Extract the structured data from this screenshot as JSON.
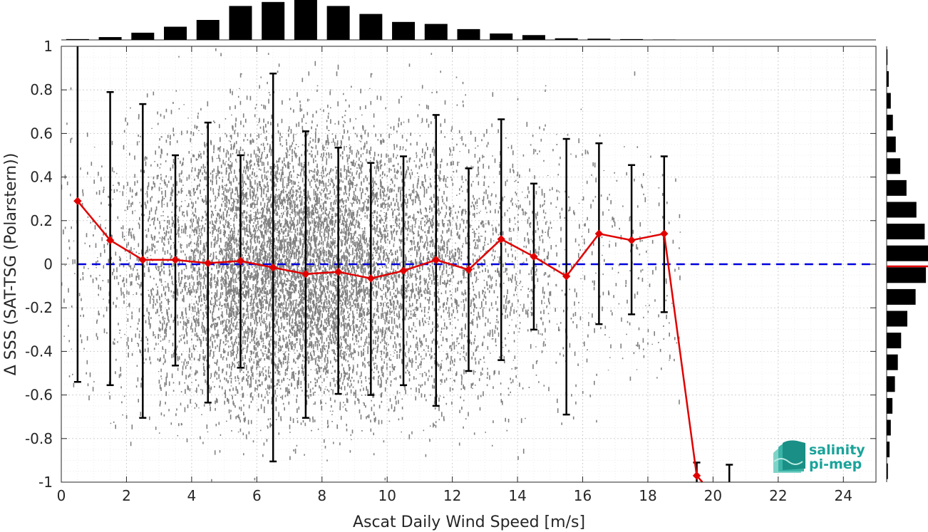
{
  "chart_data": {
    "type": "scatter",
    "xlabel": "Ascat Daily Wind Speed [m/s]",
    "ylabel": "Δ SSS (SAT-TSG (Polarstern))",
    "xlim": [
      0,
      25
    ],
    "ylim": [
      -1,
      1
    ],
    "xticks": [
      0,
      2,
      4,
      6,
      8,
      10,
      12,
      14,
      16,
      18,
      20,
      22,
      24
    ],
    "yticks": [
      -1,
      -0.8,
      -0.6,
      -0.4,
      -0.2,
      0,
      0.2,
      0.4,
      0.6,
      0.8,
      1
    ],
    "ytick_labels": [
      "-1",
      "-0.8",
      "-0.6",
      "-0.4",
      "-0.2",
      "0",
      "0.2",
      "0.4",
      "0.6",
      "0.8",
      "1"
    ],
    "grid": true,
    "reference_line": {
      "y": 0,
      "style": "dashed",
      "color": "#0000dd"
    },
    "binned_stats": {
      "x": [
        0.5,
        1.5,
        2.5,
        3.5,
        4.5,
        5.5,
        6.5,
        7.5,
        8.5,
        9.5,
        10.5,
        11.5,
        12.5,
        13.5,
        14.5,
        15.5,
        16.5,
        17.5,
        18.5,
        19.5,
        20.5
      ],
      "mean": [
        0.29,
        0.11,
        0.02,
        0.02,
        0.005,
        0.015,
        -0.015,
        -0.045,
        -0.035,
        -0.065,
        -0.03,
        0.02,
        -0.025,
        0.115,
        0.035,
        -0.055,
        0.14,
        0.11,
        0.14,
        -0.97,
        null
      ],
      "upper": [
        1.0,
        0.79,
        0.735,
        0.5,
        0.65,
        0.5,
        0.875,
        0.61,
        0.535,
        0.465,
        0.495,
        0.685,
        0.44,
        0.665,
        0.37,
        0.575,
        0.555,
        0.455,
        0.495,
        -0.91,
        -0.92
      ],
      "lower": [
        -0.54,
        -0.555,
        -0.705,
        -0.465,
        -0.635,
        -0.475,
        -0.905,
        -0.705,
        -0.595,
        -0.6,
        -0.555,
        -0.65,
        -0.49,
        -0.44,
        -0.3,
        -0.69,
        -0.275,
        -0.23,
        -0.22,
        -1.0,
        -1.0
      ],
      "line_color": "#e00000",
      "errorbar_color": "#000000"
    },
    "scatter_color": "#808080",
    "top_histogram": {
      "bin_centers": [
        0.5,
        1.5,
        2.5,
        3.5,
        4.5,
        5.5,
        6.5,
        7.5,
        8.5,
        9.5,
        10.5,
        11.5,
        12.5,
        13.5,
        14.5,
        15.5,
        16.5,
        17.5,
        18.5
      ],
      "relative_counts": [
        0.02,
        0.07,
        0.18,
        0.33,
        0.5,
        0.85,
        0.95,
        1.0,
        0.85,
        0.65,
        0.45,
        0.4,
        0.27,
        0.16,
        0.12,
        0.04,
        0.03,
        0.02,
        0.01
      ]
    },
    "right_histogram": {
      "bin_centers": [
        -0.95,
        -0.85,
        -0.75,
        -0.65,
        -0.55,
        -0.45,
        -0.35,
        -0.25,
        -0.15,
        -0.05,
        0.05,
        0.15,
        0.25,
        0.35,
        0.45,
        0.55,
        0.65,
        0.75,
        0.85,
        0.95
      ],
      "relative_counts": [
        0.03,
        0.07,
        0.1,
        0.14,
        0.2,
        0.27,
        0.35,
        0.5,
        0.7,
        0.95,
        1.0,
        0.92,
        0.72,
        0.48,
        0.33,
        0.22,
        0.15,
        0.1,
        0.05,
        0.02
      ],
      "median_marker": -0.01,
      "median_color": "#e00000"
    }
  },
  "logo": {
    "line1": "salinity",
    "line2": "pi-mep",
    "name": "salinity-pi-mep-logo"
  }
}
